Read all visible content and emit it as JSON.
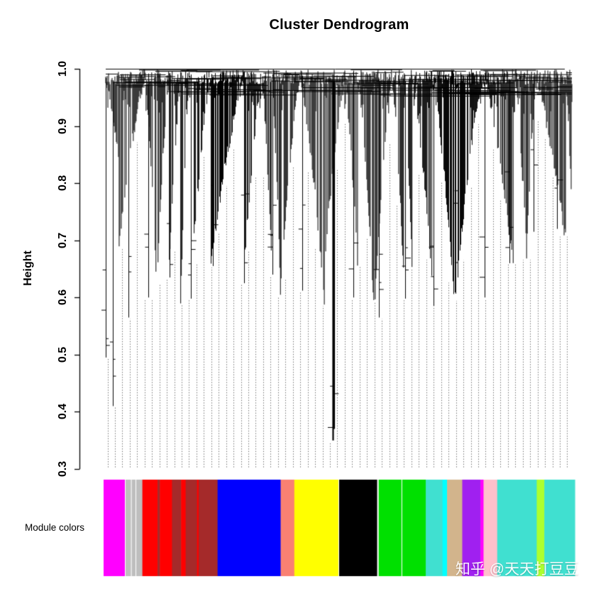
{
  "watermark": "知乎 @天天打豆豆",
  "chart_data": {
    "type": "dendrogram",
    "title": "Cluster Dendrogram",
    "ylabel": "Height",
    "module_colors_label": "Module colors",
    "ylim": [
      0.3,
      1.0
    ],
    "yticks": [
      0.3,
      0.4,
      0.5,
      0.6,
      0.7,
      0.8,
      0.9,
      1.0
    ],
    "grid": false,
    "legend": "none",
    "modules": [
      {
        "name": "magenta",
        "color": "#FF00FF",
        "w": 28
      },
      {
        "name": "white",
        "color": "#FFFFFF",
        "w": 1
      },
      {
        "name": "grey",
        "color": "#BEBEBE",
        "w": 7
      },
      {
        "name": "white",
        "color": "#FFFFFF",
        "w": 1
      },
      {
        "name": "grey",
        "color": "#BEBEBE",
        "w": 5
      },
      {
        "name": "white",
        "color": "#FFFFFF",
        "w": 1
      },
      {
        "name": "grey",
        "color": "#BEBEBE",
        "w": 8
      },
      {
        "name": "red",
        "color": "#FF0000",
        "w": 20
      },
      {
        "name": "brown",
        "color": "#A52A2A",
        "w": 3
      },
      {
        "name": "red",
        "color": "#FF0000",
        "w": 16
      },
      {
        "name": "brown",
        "color": "#A52A2A",
        "w": 12
      },
      {
        "name": "red",
        "color": "#FF0000",
        "w": 6
      },
      {
        "name": "brown",
        "color": "#A52A2A",
        "w": 15
      },
      {
        "name": "red",
        "color": "#FF0000",
        "w": 2
      },
      {
        "name": "brown",
        "color": "#A52A2A",
        "w": 25
      },
      {
        "name": "blue",
        "color": "#0000FF",
        "w": 83
      },
      {
        "name": "salmon",
        "color": "#FA8072",
        "w": 18
      },
      {
        "name": "yellow",
        "color": "#FFFF00",
        "w": 58
      },
      {
        "name": "white",
        "color": "#FFFFFF",
        "w": 1
      },
      {
        "name": "black",
        "color": "#000000",
        "w": 50
      },
      {
        "name": "white",
        "color": "#FFFFFF",
        "w": 2
      },
      {
        "name": "green",
        "color": "#00E000",
        "w": 30
      },
      {
        "name": "white",
        "color": "#FFFFFF",
        "w": 1
      },
      {
        "name": "green",
        "color": "#00E000",
        "w": 31
      },
      {
        "name": "turquoise",
        "color": "#40E0D0",
        "w": 22
      },
      {
        "name": "cyan",
        "color": "#00FFFF",
        "w": 6
      },
      {
        "name": "tan",
        "color": "#D2B48C",
        "w": 20
      },
      {
        "name": "purple",
        "color": "#A020F0",
        "w": 24
      },
      {
        "name": "magenta",
        "color": "#FF00FF",
        "w": 4
      },
      {
        "name": "pink",
        "color": "#FFC0CB",
        "w": 18
      },
      {
        "name": "turquoise",
        "color": "#40E0D0",
        "w": 52
      },
      {
        "name": "greenyellow",
        "color": "#ADFF2F",
        "w": 10
      },
      {
        "name": "turquoise",
        "color": "#40E0D0",
        "w": 40
      }
    ],
    "render": {
      "seed": 1337,
      "n_leaves": 660,
      "mesh_segments": 110,
      "dot_spacing": 10.45,
      "depth_profile": [
        [
          0.0,
          0.86
        ],
        [
          0.02,
          0.78
        ],
        [
          0.05,
          0.7
        ],
        [
          0.09,
          0.63
        ],
        [
          0.14,
          0.6
        ],
        [
          0.2,
          0.62
        ],
        [
          0.27,
          0.6
        ],
        [
          0.33,
          0.63
        ],
        [
          0.4,
          0.61
        ],
        [
          0.46,
          0.58
        ],
        [
          0.5,
          0.63
        ],
        [
          0.56,
          0.59
        ],
        [
          0.62,
          0.61
        ],
        [
          0.69,
          0.59
        ],
        [
          0.76,
          0.62
        ],
        [
          0.83,
          0.66
        ],
        [
          0.9,
          0.7
        ],
        [
          1.0,
          0.73
        ]
      ],
      "spikes": [
        [
          0.004,
          0.495
        ],
        [
          0.02,
          0.41
        ],
        [
          0.052,
          0.565
        ],
        [
          0.095,
          0.6
        ],
        [
          0.14,
          0.635
        ],
        [
          0.185,
          0.598
        ],
        [
          0.232,
          0.655
        ],
        [
          0.298,
          0.625
        ],
        [
          0.358,
          0.64
        ],
        [
          0.422,
          0.612
        ],
        [
          0.487,
          0.35
        ],
        [
          0.53,
          0.6
        ],
        [
          0.585,
          0.565
        ],
        [
          0.64,
          0.598
        ],
        [
          0.7,
          0.585
        ],
        [
          0.752,
          0.635
        ],
        [
          0.808,
          0.6
        ],
        [
          0.862,
          0.66
        ],
        [
          0.912,
          0.715
        ],
        [
          0.962,
          0.72
        ]
      ]
    }
  }
}
